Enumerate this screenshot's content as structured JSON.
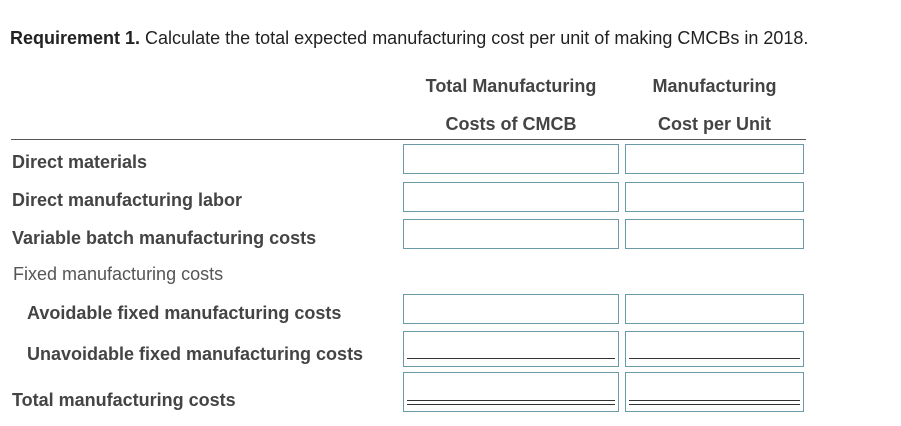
{
  "requirement": {
    "label": "Requirement 1.",
    "text": " Calculate the total expected manufacturing cost per unit of making CMCBs in 2018."
  },
  "columns": {
    "col1_line1": "Total Manufacturing",
    "col1_line2": "Costs of CMCB",
    "col2_line1": "Manufacturing",
    "col2_line2": "Cost per Unit"
  },
  "rows": [
    {
      "label": "Direct materials",
      "total": "",
      "per_unit": ""
    },
    {
      "label": "Direct manufacturing labor",
      "total": "",
      "per_unit": ""
    },
    {
      "label": "Variable batch manufacturing costs",
      "total": "",
      "per_unit": ""
    },
    {
      "label": "Fixed manufacturing costs"
    },
    {
      "label": "Avoidable fixed manufacturing costs",
      "total": "",
      "per_unit": ""
    },
    {
      "label": "Unavoidable fixed manufacturing costs",
      "total": "",
      "per_unit": ""
    },
    {
      "label": "Total manufacturing costs",
      "total": "",
      "per_unit": ""
    }
  ]
}
